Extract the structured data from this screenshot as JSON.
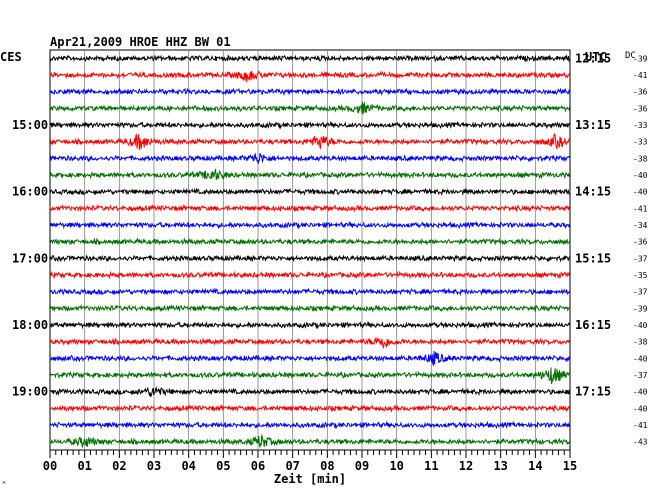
{
  "chart_data": {
    "type": "line",
    "title": "Apr21,2009   HROE HHZ BW 01",
    "left_time_zone": "CES",
    "right_time_zone": "UTC",
    "dc_label": "DC",
    "xlabel": "Zeit [min]",
    "x_ticks": [
      "00",
      "01",
      "02",
      "03",
      "04",
      "05",
      "06",
      "07",
      "08",
      "09",
      "10",
      "11",
      "12",
      "13",
      "14",
      "15"
    ],
    "xlim": [
      0,
      15
    ],
    "left_hour_labels": [
      {
        "row": 4,
        "label": "15:00"
      },
      {
        "row": 8,
        "label": "16:00"
      },
      {
        "row": 12,
        "label": "17:00"
      },
      {
        "row": 16,
        "label": "18:00"
      },
      {
        "row": 20,
        "label": "19:00"
      }
    ],
    "right_hour_labels": [
      {
        "row": 0,
        "label": "12:15"
      },
      {
        "row": 4,
        "label": "13:15"
      },
      {
        "row": 8,
        "label": "14:15"
      },
      {
        "row": 12,
        "label": "15:15"
      },
      {
        "row": 16,
        "label": "16:15"
      },
      {
        "row": 20,
        "label": "17:15"
      }
    ],
    "dc_offsets": [
      "-39",
      "-41",
      "-36",
      "-36",
      "-33",
      "-33",
      "-38",
      "-40",
      "-40",
      "-41",
      "-34",
      "-36",
      "-37",
      "-35",
      "-37",
      "-39",
      "-40",
      "-38",
      "-40",
      "-37",
      "-40",
      "-40",
      "-41",
      "-43"
    ],
    "trace_colors": [
      "#000000",
      "#ff0000",
      "#0000ff",
      "#007000"
    ],
    "grid": true,
    "events": [
      {
        "row": 1,
        "minute": 5.7,
        "amplitude": 6
      },
      {
        "row": 3,
        "minute": 9.0,
        "amplitude": 5
      },
      {
        "row": 5,
        "minute": 2.6,
        "amplitude": 8
      },
      {
        "row": 5,
        "minute": 7.8,
        "amplitude": 7
      },
      {
        "row": 5,
        "minute": 14.6,
        "amplitude": 6
      },
      {
        "row": 6,
        "minute": 6.0,
        "amplitude": 5
      },
      {
        "row": 7,
        "minute": 4.7,
        "amplitude": 6
      },
      {
        "row": 17,
        "minute": 9.6,
        "amplitude": 6
      },
      {
        "row": 18,
        "minute": 11.1,
        "amplitude": 6
      },
      {
        "row": 19,
        "minute": 14.5,
        "amplitude": 9
      },
      {
        "row": 20,
        "minute": 3.0,
        "amplitude": 5
      },
      {
        "row": 23,
        "minute": 1.0,
        "amplitude": 5
      },
      {
        "row": 23,
        "minute": 6.1,
        "amplitude": 6
      }
    ]
  }
}
